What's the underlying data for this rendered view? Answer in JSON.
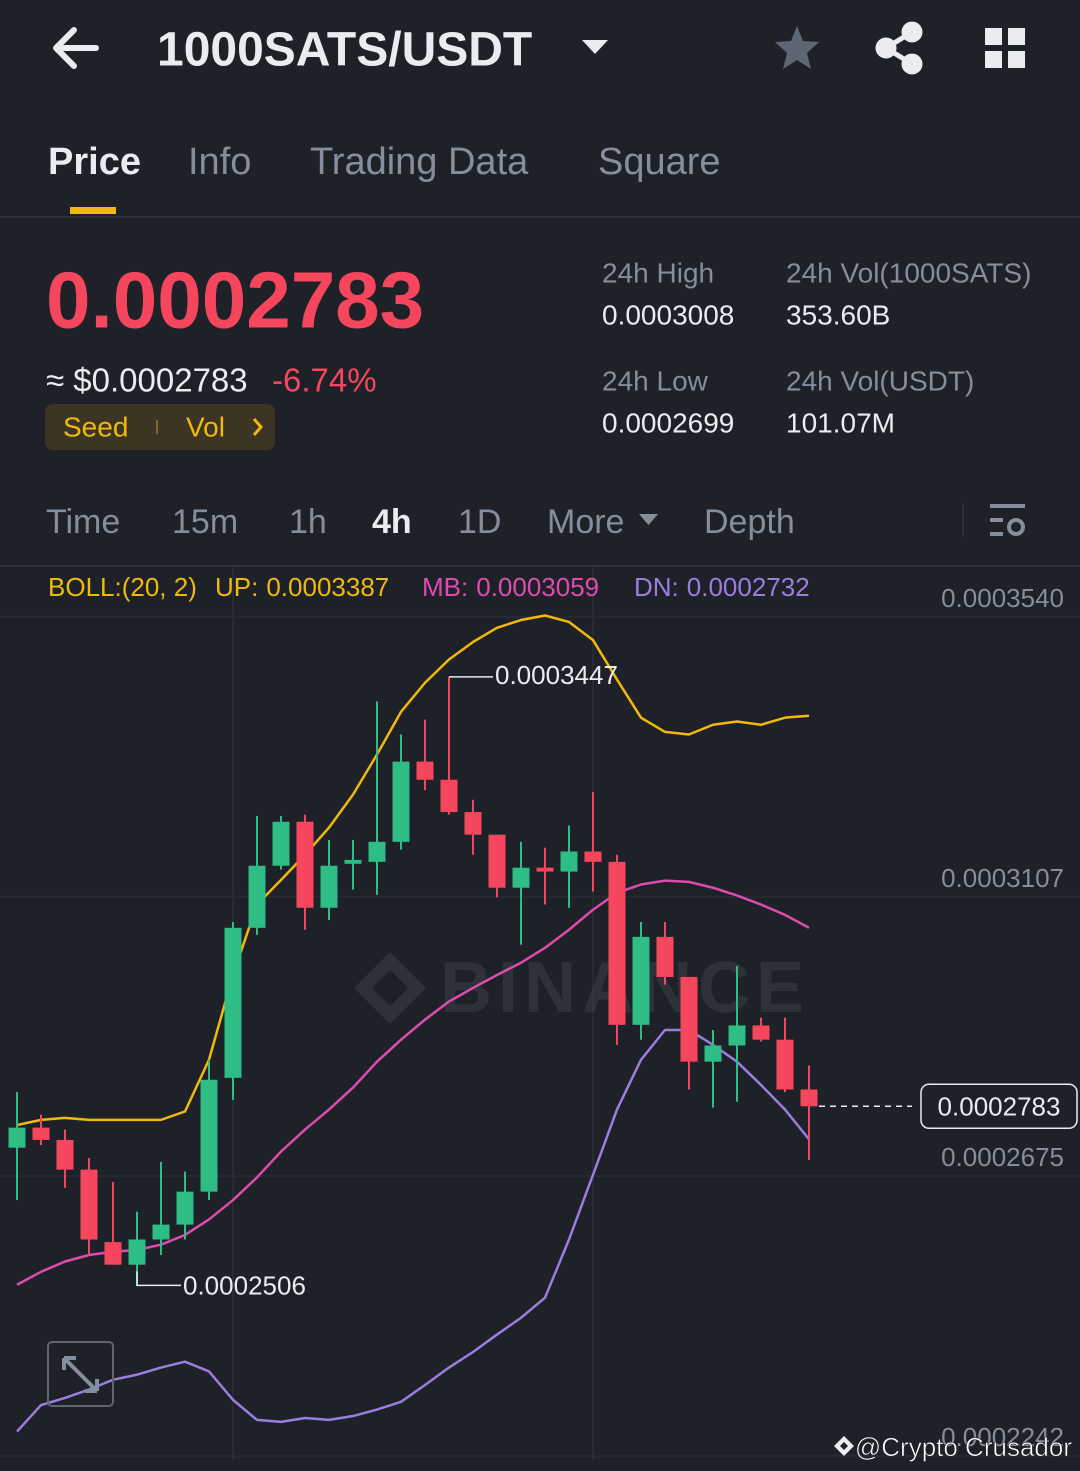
{
  "header": {
    "title": "1000SATS/USDT"
  },
  "tabs": [
    "Price",
    "Info",
    "Trading Data",
    "Square"
  ],
  "ticker": {
    "price": "0.0002783",
    "approx": "≈ $0.0002783",
    "change": "-6.74%",
    "badges": [
      "Seed",
      "Vol"
    ],
    "stats": [
      {
        "label": "24h High",
        "value": "0.0003008"
      },
      {
        "label": "24h Vol(1000SATS)",
        "value": "353.60B"
      },
      {
        "label": "24h Low",
        "value": "0.0002699"
      },
      {
        "label": "24h Vol(USDT)",
        "value": "101.07M"
      }
    ]
  },
  "intervals": [
    "Time",
    "15m",
    "1h",
    "4h",
    "1D",
    "More",
    "Depth"
  ],
  "chart_data": {
    "type": "candlestick",
    "indicator": "BOLL:(20, 2)",
    "watermark": "BINANCE",
    "up_color": "#2ebd85",
    "down_color": "#f6465d",
    "open": [
      0.0002719,
      0.000275,
      0.0002731,
      0.0002685,
      0.0002573,
      0.0002538,
      0.0002577,
      0.00026,
      0.0002651,
      0.0002827,
      0.0003059,
      0.0003155,
      0.0003223,
      0.000309,
      0.0003158,
      0.0003161,
      0.0003192,
      0.0003316,
      0.0003288,
      0.0003238,
      0.0003203,
      0.0003121,
      0.0003152,
      0.0003146,
      0.0003177,
      0.0003161,
      0.0002909,
      0.0003045,
      0.0002983,
      0.0002852,
      0.0002877,
      0.0002908,
      0.0002886,
      0.0002809
    ],
    "high": [
      0.0002805,
      0.000277,
      0.0002747,
      0.0002703,
      0.0002666,
      0.000262,
      0.0002697,
      0.0002682,
      0.0002855,
      0.0003068,
      0.0003232,
      0.0003232,
      0.0003234,
      0.0003195,
      0.0003195,
      0.0003409,
      0.0003358,
      0.0003381,
      0.0003447,
      0.0003257,
      0.0003203,
      0.0003192,
      0.0003183,
      0.0003217,
      0.0003269,
      0.0003172,
      0.0003068,
      0.0003068,
      0.0002983,
      0.0002901,
      0.0003,
      0.000292,
      0.000292,
      0.0002846
    ],
    "low": [
      0.0002638,
      0.0002723,
      0.0002657,
      0.0002553,
      0.0002538,
      0.0002506,
      0.0002553,
      0.0002577,
      0.0002638,
      0.0002793,
      0.0003048,
      0.0003149,
      0.0003056,
      0.0003071,
      0.0003118,
      0.000311,
      0.000318,
      0.0003272,
      0.0003234,
      0.0003172,
      0.0003106,
      0.0003033,
      0.0003095,
      0.000309,
      0.0003115,
      0.0002878,
      0.0002886,
      0.0002971,
      0.0002809,
      0.0002781,
      0.000279,
      0.0002883,
      0.0002805,
      0.00027
    ],
    "close": [
      0.000275,
      0.0002731,
      0.0002685,
      0.0002577,
      0.0002538,
      0.0002577,
      0.00026,
      0.0002651,
      0.0002824,
      0.0003059,
      0.0003155,
      0.0003223,
      0.000309,
      0.0003155,
      0.0003164,
      0.0003192,
      0.0003316,
      0.0003288,
      0.0003238,
      0.0003203,
      0.0003121,
      0.0003152,
      0.0003146,
      0.0003177,
      0.0003161,
      0.0002909,
      0.0003045,
      0.0002983,
      0.0002852,
      0.0002877,
      0.0002908,
      0.0002886,
      0.0002809,
      0.0002783
    ],
    "series": [
      {
        "name": "UP:",
        "color": "#f0b90b",
        "values": [
          0.0002754,
          0.0002762,
          0.0002765,
          0.0002762,
          0.0002762,
          0.0002762,
          0.0002762,
          0.0002775,
          0.0002855,
          0.0002986,
          0.0003095,
          0.0003133,
          0.0003172,
          0.0003214,
          0.0003265,
          0.0003327,
          0.0003393,
          0.0003438,
          0.0003474,
          0.0003501,
          0.0003523,
          0.0003535,
          0.0003542,
          0.0003532,
          0.0003504,
          0.0003443,
          0.0003384,
          0.0003362,
          0.0003358,
          0.0003373,
          0.0003378,
          0.0003373,
          0.0003384,
          0.0003387
        ]
      },
      {
        "name": "MB:",
        "color": "#e04bb0",
        "values": [
          0.0002507,
          0.0002527,
          0.0002543,
          0.0002553,
          0.0002558,
          0.0002561,
          0.0002569,
          0.0002584,
          0.0002608,
          0.0002638,
          0.0002673,
          0.0002713,
          0.0002747,
          0.0002778,
          0.0002812,
          0.0002852,
          0.0002886,
          0.0002917,
          0.0002945,
          0.0002966,
          0.0002986,
          0.0003005,
          0.0003028,
          0.0003056,
          0.0003087,
          0.0003113,
          0.0003126,
          0.0003132,
          0.000313,
          0.0003121,
          0.0003109,
          0.0003095,
          0.0003079,
          0.0003059
        ]
      },
      {
        "name": "DN:",
        "color": "#9a7ee0",
        "values": [
          0.000228,
          0.0002321,
          0.0002332,
          0.0002345,
          0.000236,
          0.0002368,
          0.0002379,
          0.0002388,
          0.0002373,
          0.0002329,
          0.0002298,
          0.0002295,
          0.0002301,
          0.0002298,
          0.0002304,
          0.0002314,
          0.0002326,
          0.0002352,
          0.0002379,
          0.0002403,
          0.000243,
          0.0002456,
          0.0002487,
          0.0002577,
          0.0002677,
          0.0002778,
          0.0002855,
          0.0002901,
          0.0002901,
          0.0002878,
          0.0002852,
          0.0002816,
          0.0002778,
          0.0002732
        ]
      }
    ],
    "ylim": [
      0.0002236,
      0.0003617
    ],
    "yticks": [
      {
        "value": 0.000354,
        "label": "0.0003540"
      },
      0.0003107,
      0.0002675,
      0.0002242
    ],
    "grid": true
  },
  "footer": "@Crypto Crusador"
}
